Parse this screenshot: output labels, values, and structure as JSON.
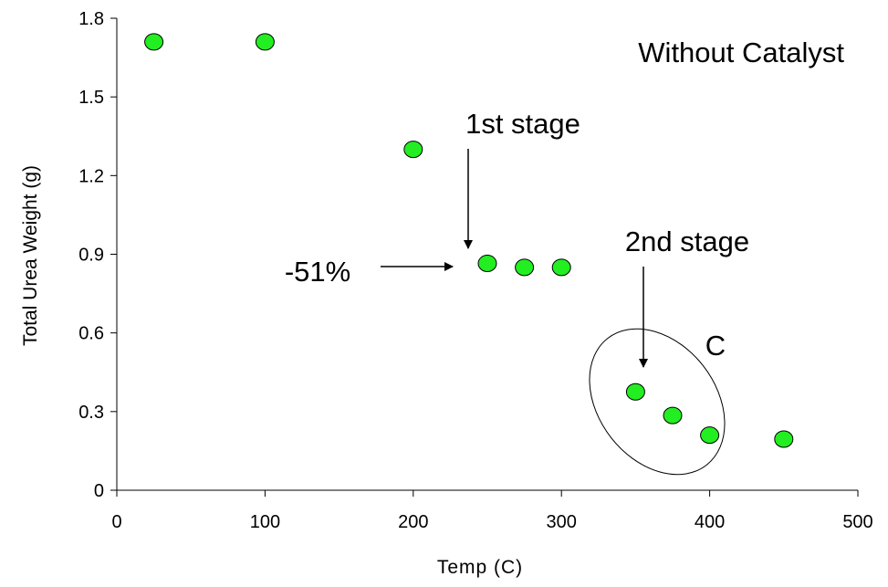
{
  "chart_data": {
    "type": "scatter",
    "xlabel": "Temp (C)",
    "ylabel": "Total Urea Weight (g)",
    "xlim": [
      0,
      500
    ],
    "ylim": [
      0,
      1.8
    ],
    "x_ticks": [
      "0",
      "100",
      "200",
      "300",
      "400",
      "500"
    ],
    "y_ticks": [
      "0",
      "0.3",
      "0.6",
      "0.9",
      "1.2",
      "1.5",
      "1.8"
    ],
    "grid": false,
    "legend": "none",
    "series": [
      {
        "marker_color": "#22ee22",
        "points": [
          {
            "x": 25,
            "y": 1.71
          },
          {
            "x": 100,
            "y": 1.71
          },
          {
            "x": 200,
            "y": 1.3
          },
          {
            "x": 250,
            "y": 0.865
          },
          {
            "x": 275,
            "y": 0.85
          },
          {
            "x": 300,
            "y": 0.85
          },
          {
            "x": 350,
            "y": 0.375
          },
          {
            "x": 375,
            "y": 0.285
          },
          {
            "x": 400,
            "y": 0.21
          },
          {
            "x": 450,
            "y": 0.195
          }
        ]
      }
    ],
    "annotations": {
      "title_text": "Without Catalyst",
      "first_stage": "1st stage",
      "second_stage": "2nd stage",
      "percent_drop": "-51%",
      "cluster_label": "C"
    }
  }
}
